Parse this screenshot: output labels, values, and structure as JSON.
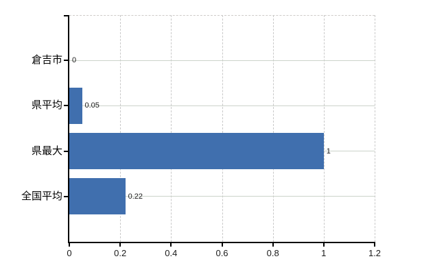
{
  "chart_data": {
    "type": "bar",
    "orientation": "horizontal",
    "title": "",
    "xlabel": "",
    "ylabel": "",
    "categories": [
      "倉吉市",
      "県平均",
      "県最大",
      "全国平均"
    ],
    "values": [
      0,
      0.05,
      1,
      0.22
    ],
    "value_labels": [
      "0",
      "0.05",
      "1",
      "0.22"
    ],
    "x_ticks": [
      0,
      0.2,
      0.4,
      0.6,
      0.8,
      1,
      1.2
    ],
    "x_tick_labels": [
      "0",
      "0.2",
      "0.4",
      "0.6",
      "0.8",
      "1",
      "1.2"
    ],
    "xlim": [
      0,
      1.2
    ],
    "grid": true,
    "legend_position": "none",
    "colors": {
      "bar": "#406fae",
      "h_gridline": "#ccd3ca",
      "v_gridline": "#c9c9c9",
      "axis": "#000000",
      "text": "#000000",
      "background": "#ffffff"
    }
  }
}
